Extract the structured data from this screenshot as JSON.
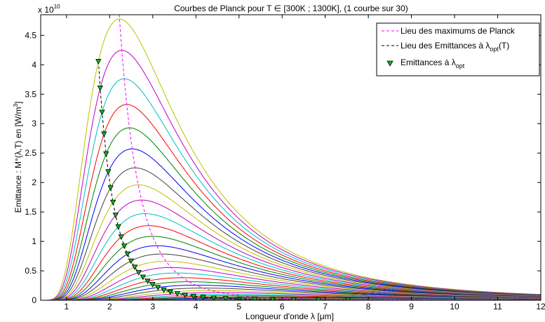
{
  "chart_data": {
    "type": "line",
    "title": "Courbes de Planck pour T ∈ [300K ; 1300K], (1 courbe sur 30)",
    "xlabel": "Longueur d'onde  λ [μm]",
    "ylabel_pre": "Emittance : M°(λ,T) en [W/m",
    "ylabel_sup": "3",
    "ylabel_post": "]",
    "y_multiplier": "x 10",
    "y_multiplier_exp": "10",
    "xlim": [
      0.4,
      12
    ],
    "ylim": [
      0,
      4.85
    ],
    "xticks": [
      1,
      2,
      3,
      4,
      5,
      6,
      7,
      8,
      9,
      10,
      11,
      12
    ],
    "yticks": [
      0,
      0.5,
      1,
      1.5,
      2,
      2.5,
      3,
      3.5,
      4,
      4.5
    ],
    "ytick_labels": [
      "0",
      "0.5",
      "1",
      "1.5",
      "2",
      "2.5",
      "3",
      "3.5",
      "4",
      "4.5"
    ],
    "temperature_range": [
      300,
      1300
    ],
    "curve_count": 34,
    "series_colors": [
      "#bfbf00",
      "#bf00bf",
      "#00bfbf",
      "#ff0000",
      "#008000",
      "#0000ff",
      "#404040"
    ],
    "legend": {
      "position": "top-right",
      "entries": [
        {
          "label": "Lieu des maximums de Planck",
          "style": "dashed",
          "color": "#ff00ff"
        },
        {
          "label_pre": "Lieu des Emittances à λ",
          "label_sub": "opt",
          "label_post": "(T)",
          "style": "dashed",
          "color": "#000000"
        },
        {
          "label_pre": "Emittances à λ",
          "label_sub": "opt",
          "label_post": "",
          "style": "marker",
          "color": "#00c000"
        }
      ]
    }
  }
}
